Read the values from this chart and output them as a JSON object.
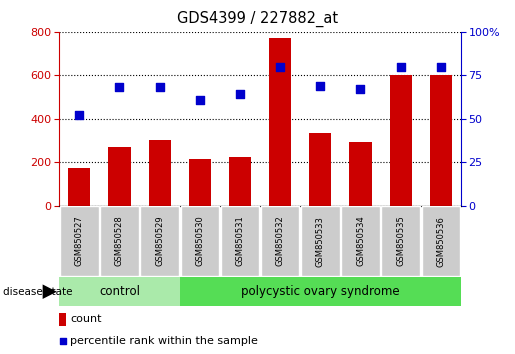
{
  "title": "GDS4399 / 227882_at",
  "samples": [
    "GSM850527",
    "GSM850528",
    "GSM850529",
    "GSM850530",
    "GSM850531",
    "GSM850532",
    "GSM850533",
    "GSM850534",
    "GSM850535",
    "GSM850536"
  ],
  "counts": [
    175,
    270,
    300,
    215,
    225,
    770,
    335,
    295,
    600,
    600
  ],
  "percentiles": [
    52,
    68,
    68,
    61,
    64,
    80,
    69,
    67,
    80,
    80
  ],
  "ylim_left": [
    0,
    800
  ],
  "ylim_right": [
    0,
    100
  ],
  "yticks_left": [
    0,
    200,
    400,
    600,
    800
  ],
  "yticks_right": [
    0,
    25,
    50,
    75,
    100
  ],
  "bar_color": "#cc0000",
  "dot_color": "#0000cc",
  "grid_color": "#000000",
  "n_control": 3,
  "n_pcos": 7,
  "control_label": "control",
  "pcos_label": "polycystic ovary syndrome",
  "disease_state_label": "disease state",
  "legend_count": "count",
  "legend_percentile": "percentile rank within the sample",
  "control_color": "#aaeaaa",
  "pcos_color": "#55dd55",
  "tick_bg_color": "#cccccc",
  "figsize": [
    5.15,
    3.54
  ],
  "dpi": 100
}
